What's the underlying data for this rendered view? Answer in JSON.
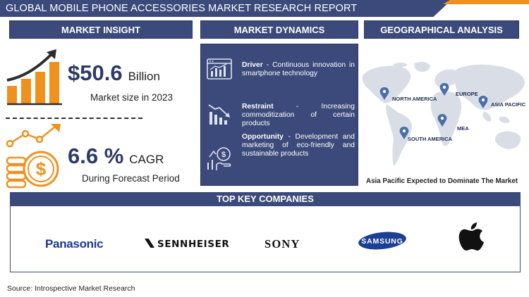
{
  "header": {
    "title": "GLOBAL MOBILE PHONE ACCESSORIES MARKET RESEARCH REPORT"
  },
  "colors": {
    "navy": "#3b4a7a",
    "orange": "#f0911e",
    "map": "#d9dde6",
    "pin": "#4a6ea8"
  },
  "market_insight": {
    "heading": "MARKET INSIGHT",
    "size_value": "$50.6",
    "size_unit": "Billion",
    "size_caption": "Market size in 2023",
    "cagr_value": "6.6 %",
    "cagr_unit": "CAGR",
    "cagr_caption": "During Forecast Period",
    "icons": [
      "growth-chart-icon",
      "dollar-coin-icon"
    ]
  },
  "market_dynamics": {
    "heading": "MARKET DYNAMICS",
    "items": [
      {
        "label": "Driver",
        "sep": " - ",
        "text": "Continuous innovation in smartphone technology",
        "icon": "browser-chart-icon"
      },
      {
        "label": "Restraint",
        "sep": " - ",
        "text": "Increasing commoditization of certain products",
        "icon": "declining-chart-icon"
      },
      {
        "label": "Opportunity",
        "sep": " - ",
        "text": "Development and marketing of eco-friendly and sustainable products",
        "icon": "opportunity-hand-icon"
      }
    ]
  },
  "geographical_analysis": {
    "heading": "GEOGRAPHICAL ANALYSIS",
    "regions": [
      "NORTH AMERICA",
      "EUROPE",
      "ASIA PACIFIC",
      "SOUTH AMERICA",
      "MEA"
    ],
    "caption": "Asia Pacific Expected to Dominate The Market"
  },
  "top_key_companies": {
    "heading": "TOP KEY COMPANIES",
    "companies": [
      "Panasonic",
      "SENNHEISER",
      "SONY",
      "SAMSUNG",
      "apple-logo-icon"
    ]
  },
  "footer": {
    "source": "Source: Introspective Market Research"
  }
}
